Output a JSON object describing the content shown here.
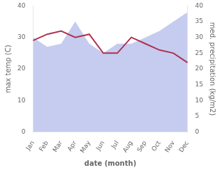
{
  "chart_data": {
    "type": "line",
    "categories": [
      "Jan",
      "Feb",
      "Mar",
      "Apr",
      "May",
      "Jun",
      "Jul",
      "Aug",
      "Sep",
      "Oct",
      "Nov",
      "Dec"
    ],
    "series": [
      {
        "type": "area",
        "color": "#c5ccf0",
        "axis": "y2",
        "values": [
          30,
          27,
          28,
          35,
          28,
          25,
          28,
          28,
          30,
          32,
          35,
          38
        ]
      },
      {
        "type": "line",
        "color": "#b03050",
        "values": [
          29,
          31,
          32,
          30,
          31,
          25,
          25,
          30,
          28,
          26,
          25,
          22
        ]
      }
    ],
    "xlabel": "date (month)",
    "ylabel": "max temp (C)",
    "y2label": "med. precipitation (kg/m2)",
    "ylim": [
      0,
      40
    ],
    "yticks": [
      0,
      10,
      20,
      30,
      40
    ],
    "y2lim": [
      0,
      40
    ],
    "y2ticks": [
      0,
      5,
      10,
      15,
      20,
      25,
      30,
      35,
      40
    ],
    "grid": false
  }
}
